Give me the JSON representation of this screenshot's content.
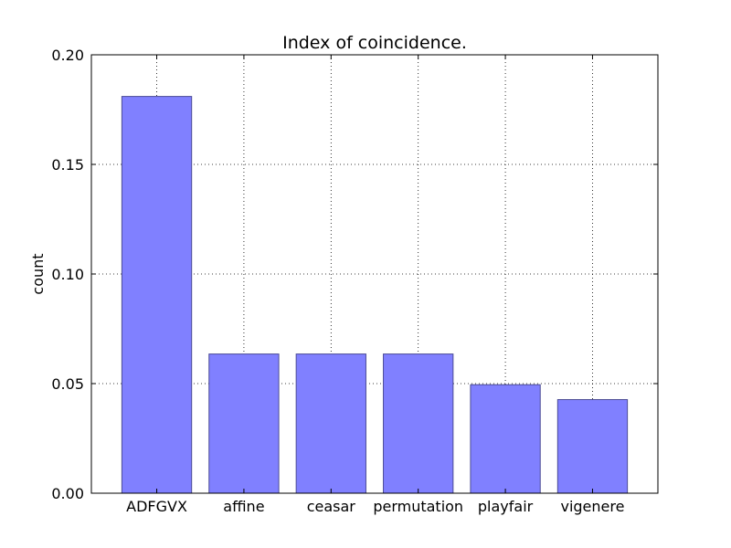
{
  "chart_data": {
    "type": "bar",
    "title": "Index of coincidence.",
    "xlabel": "",
    "ylabel": "count",
    "categories": [
      "ADFGVX",
      "affine",
      "ceasar",
      "permutation",
      "playfair",
      "vigenere"
    ],
    "values": [
      0.181,
      0.0635,
      0.0635,
      0.0635,
      0.0495,
      0.0427
    ],
    "ylim": [
      0,
      0.2
    ],
    "yticks": [
      "0.00",
      "0.05",
      "0.10",
      "0.15",
      "0.20"
    ],
    "grid": true,
    "bar_color": "#8080ff",
    "bar_edge_color": "#4b4b96"
  }
}
